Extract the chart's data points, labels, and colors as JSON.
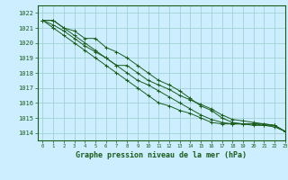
{
  "title": "Graphe pression niveau de la mer (hPa)",
  "background_color": "#cceeff",
  "grid_color": "#99cccc",
  "line_color": "#1a5c1a",
  "xlim": [
    -0.5,
    23
  ],
  "ylim": [
    1013.5,
    1022.5
  ],
  "yticks": [
    1014,
    1015,
    1016,
    1017,
    1018,
    1019,
    1020,
    1021,
    1022
  ],
  "xticks": [
    0,
    1,
    2,
    3,
    4,
    5,
    6,
    7,
    8,
    9,
    10,
    11,
    12,
    13,
    14,
    15,
    16,
    17,
    18,
    19,
    20,
    21,
    22,
    23
  ],
  "series": [
    [
      1021.5,
      1021.5,
      1021.0,
      1020.8,
      1020.3,
      1020.3,
      1019.7,
      1019.4,
      1019.0,
      1018.5,
      1018.0,
      1017.5,
      1017.2,
      1016.8,
      1016.3,
      1015.8,
      1015.5,
      1015.0,
      1014.7,
      1014.6,
      1014.6,
      1014.6,
      1014.5,
      1014.1
    ],
    [
      1021.5,
      1021.5,
      1021.0,
      1020.5,
      1020.0,
      1019.5,
      1019.0,
      1018.5,
      1018.5,
      1018.0,
      1017.5,
      1017.2,
      1016.9,
      1016.5,
      1016.2,
      1015.9,
      1015.6,
      1015.2,
      1014.9,
      1014.8,
      1014.7,
      1014.6,
      1014.5,
      1014.1
    ],
    [
      1021.5,
      1021.2,
      1020.8,
      1020.3,
      1019.8,
      1019.4,
      1019.0,
      1018.5,
      1018.0,
      1017.5,
      1017.2,
      1016.8,
      1016.4,
      1016.0,
      1015.6,
      1015.2,
      1014.9,
      1014.7,
      1014.6,
      1014.6,
      1014.6,
      1014.5,
      1014.5,
      1014.1
    ],
    [
      1021.5,
      1021.0,
      1020.5,
      1020.0,
      1019.5,
      1019.0,
      1018.5,
      1018.0,
      1017.5,
      1017.0,
      1016.5,
      1016.0,
      1015.8,
      1015.5,
      1015.3,
      1015.0,
      1014.7,
      1014.6,
      1014.6,
      1014.6,
      1014.5,
      1014.5,
      1014.4,
      1014.1
    ]
  ],
  "xlabel_fontsize": 6,
  "ytick_fontsize": 5,
  "xtick_fontsize": 4
}
